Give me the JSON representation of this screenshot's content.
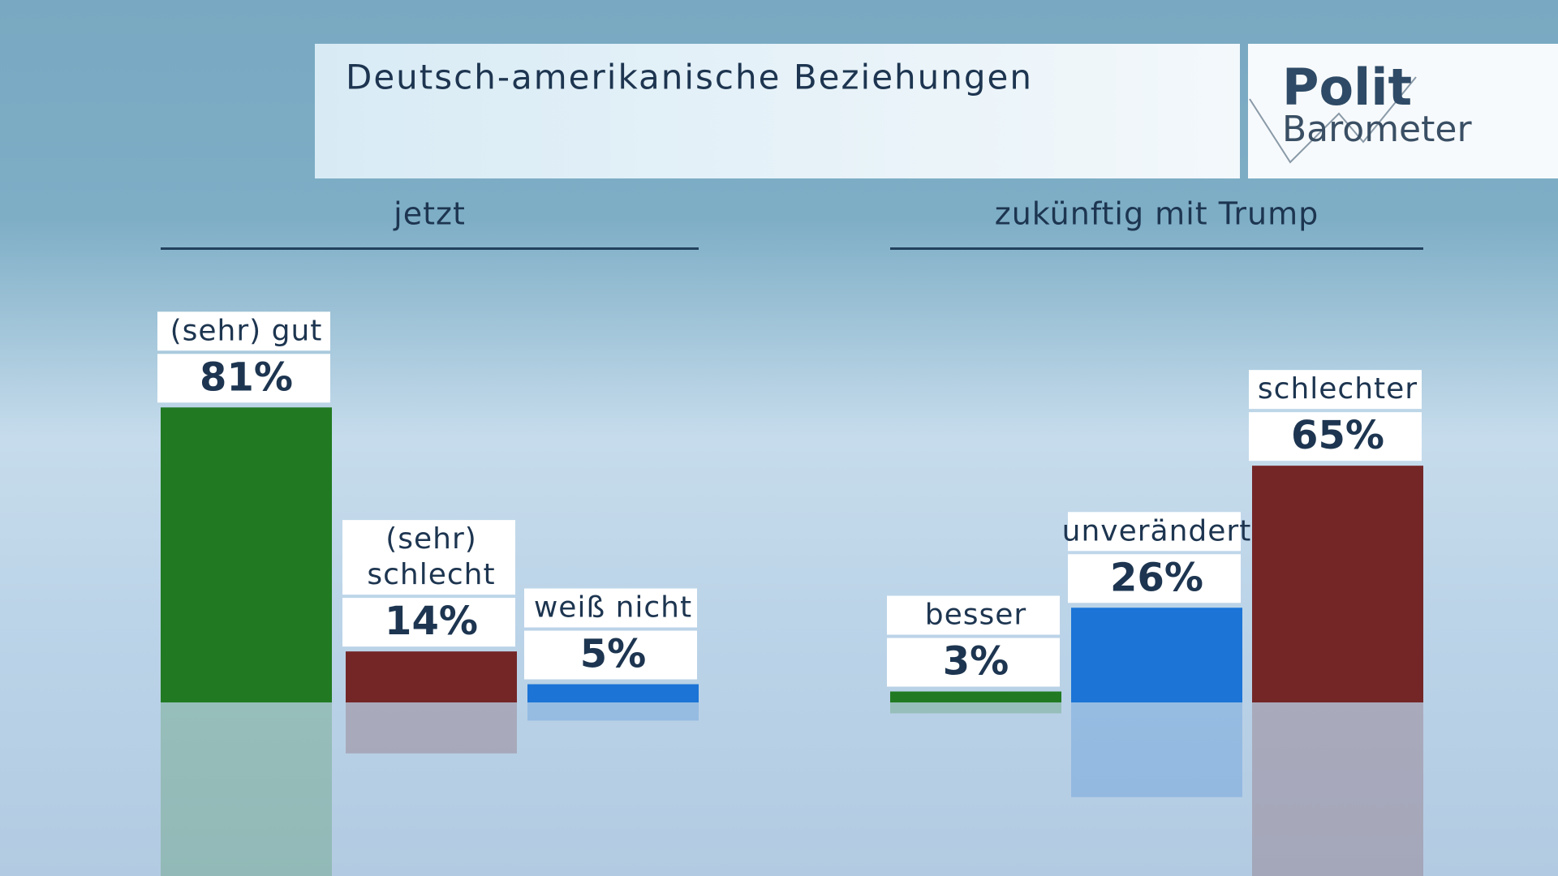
{
  "header": {
    "title": "Deutsch-amerikanische Beziehungen",
    "logo_top": "Polit",
    "logo_bottom": "Barometer"
  },
  "chart_data": [
    {
      "type": "bar",
      "title": "jetzt",
      "categories": [
        "(sehr) gut",
        "(sehr) schlecht",
        "weiß nicht"
      ],
      "values": [
        81,
        14,
        5
      ],
      "value_labels": [
        "81%",
        "14%",
        "5%"
      ],
      "colors": [
        "#217a22",
        "#742627",
        "#1b74d6"
      ]
    },
    {
      "type": "bar",
      "title": "zukünftig mit Trump",
      "categories": [
        "besser",
        "unverändert",
        "schlechter"
      ],
      "values": [
        3,
        26,
        65
      ],
      "value_labels": [
        "3%",
        "26%",
        "65%"
      ],
      "colors": [
        "#217a22",
        "#1b74d6",
        "#742627"
      ]
    }
  ]
}
